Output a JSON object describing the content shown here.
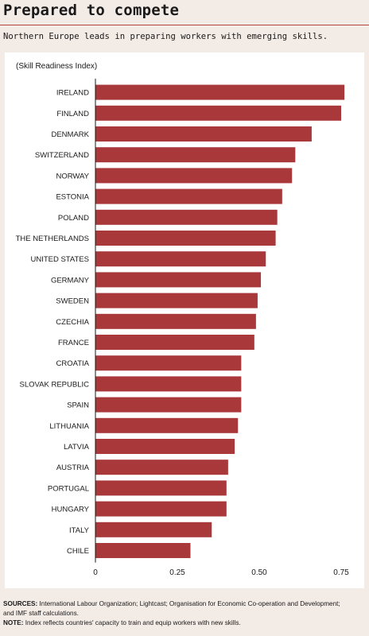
{
  "header": {
    "title": "Prepared to compete",
    "subtitle": "Northern Europe leads in preparing workers with emerging skills."
  },
  "footer": {
    "sources_label": "SOURCES:",
    "sources_line1": "International Labour Organization; Lightcast; Organisation for Economic Co-operation and Development;",
    "sources_line2": "and IMF staff calculations.",
    "note_label": "NOTE:",
    "note_text": "Index reflects countries' capacity to train and equip workers with new skills."
  },
  "colors": {
    "bar": "#a8383a",
    "background": "#f3ebe6",
    "panel": "#ffffff",
    "rule": "#b6443f"
  },
  "chart_data": {
    "type": "bar",
    "orientation": "horizontal",
    "unit_label": "(Skill Readiness Index)",
    "title": "",
    "xlabel": "",
    "ylabel": "",
    "xlim": [
      0,
      0.78
    ],
    "ticks": [
      {
        "value": 0,
        "label": "0"
      },
      {
        "value": 0.25,
        "label": "0.25"
      },
      {
        "value": 0.5,
        "label": "0.50"
      },
      {
        "value": 0.75,
        "label": "0.75"
      }
    ],
    "grid": false,
    "categories": [
      "IRELAND",
      "FINLAND",
      "DENMARK",
      "SWITZERLAND",
      "NORWAY",
      "ESTONIA",
      "POLAND",
      "THE NETHERLANDS",
      "UNITED STATES",
      "GERMANY",
      "SWEDEN",
      "CZECHIA",
      "FRANCE",
      "CROATIA",
      "SLOVAK REPUBLIC",
      "SPAIN",
      "LITHUANIA",
      "LATVIA",
      "AUSTRIA",
      "PORTUGAL",
      "HUNGARY",
      "ITALY",
      "CHILE"
    ],
    "values": [
      0.76,
      0.75,
      0.66,
      0.61,
      0.6,
      0.57,
      0.555,
      0.55,
      0.52,
      0.505,
      0.495,
      0.49,
      0.485,
      0.445,
      0.445,
      0.445,
      0.435,
      0.425,
      0.405,
      0.4,
      0.4,
      0.355,
      0.29
    ]
  }
}
